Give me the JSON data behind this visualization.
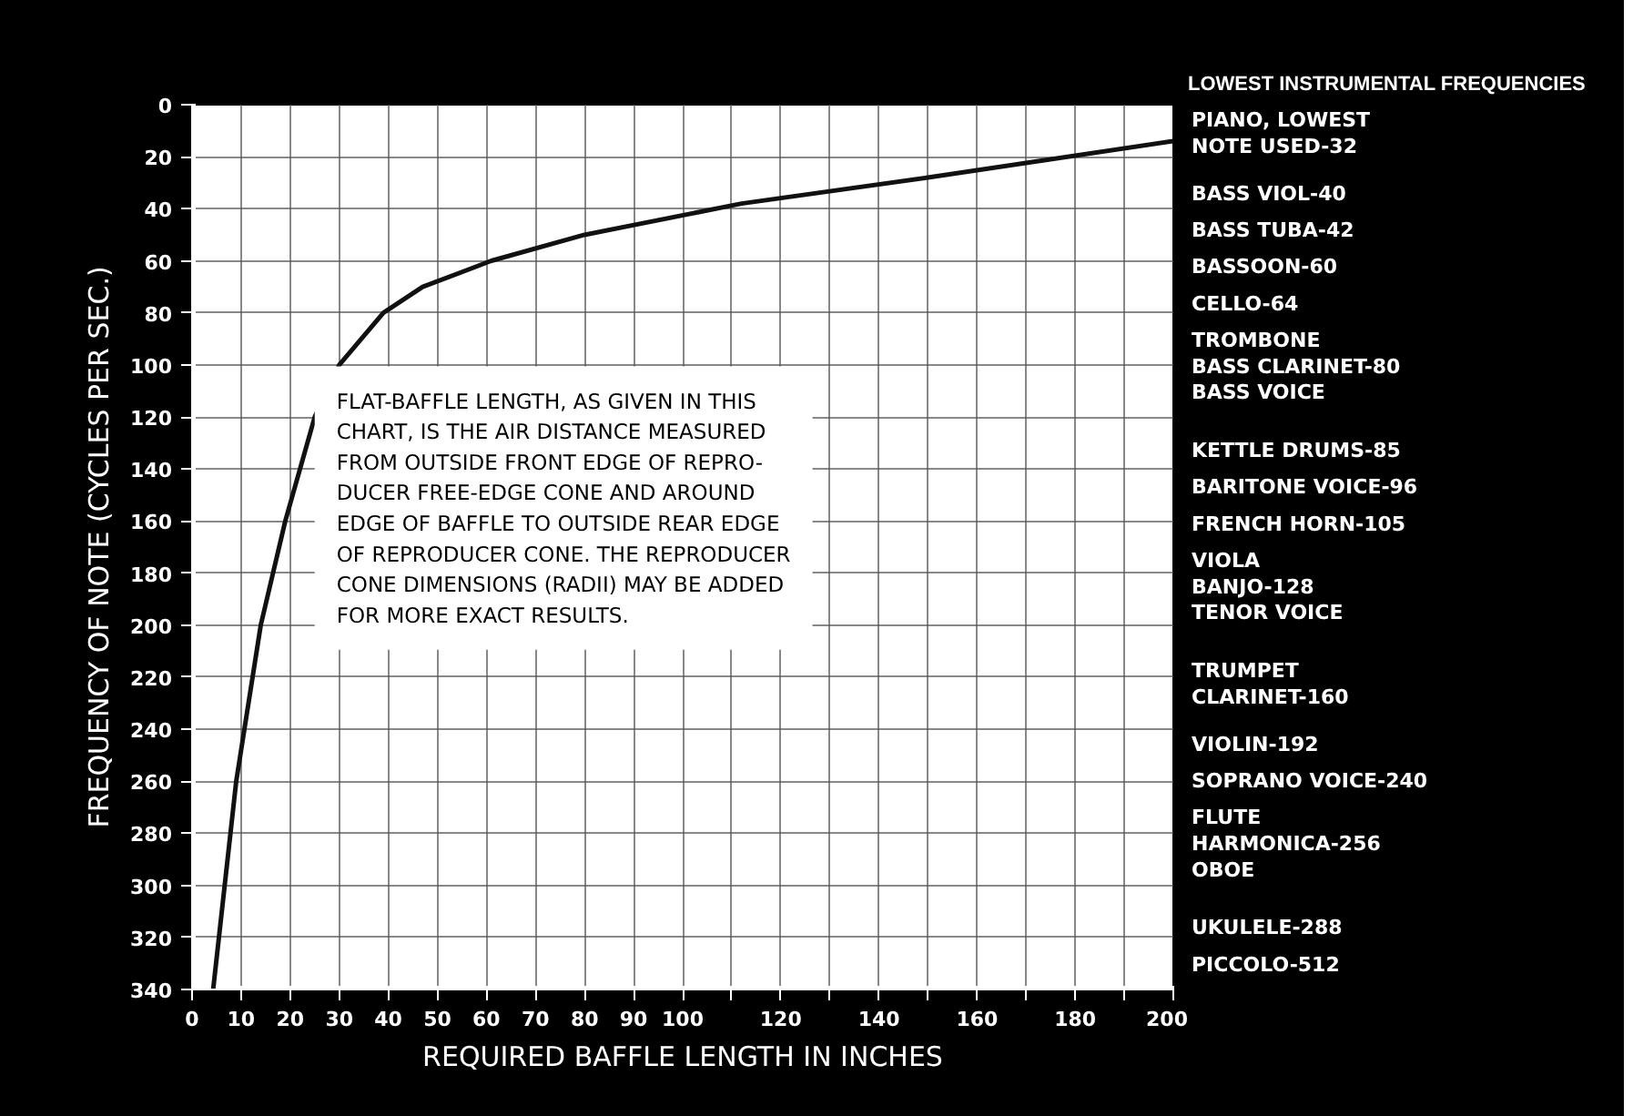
{
  "chart_data": {
    "type": "line",
    "xlabel": "REQUIRED BAFFLE LENGTH IN INCHES",
    "ylabel": "FREQUENCY OF NOTE (CYCLES PER SEC.)",
    "x": [
      4.3,
      9,
      14,
      19,
      25,
      30,
      39,
      47,
      61,
      80,
      112,
      150,
      200
    ],
    "series": [
      {
        "color": "#111111",
        "values": [
          340,
          260,
          200,
          160,
          120,
          100,
          80,
          70,
          60,
          50,
          38,
          28,
          14
        ]
      }
    ],
    "xlim": [
      0,
      200
    ],
    "ylim": [
      340,
      0
    ],
    "xticks": [
      0,
      10,
      20,
      30,
      40,
      50,
      60,
      70,
      80,
      90,
      100,
      {
        "value": 110,
        "label": null
      },
      120,
      {
        "value": 130,
        "label": null
      },
      140,
      {
        "value": 150,
        "label": null
      },
      160,
      {
        "value": 170,
        "label": null
      },
      180,
      {
        "value": 190,
        "label": null
      },
      200
    ],
    "yticks": [
      0,
      20,
      40,
      60,
      80,
      100,
      120,
      140,
      160,
      180,
      200,
      220,
      240,
      260,
      280,
      300,
      320,
      340
    ],
    "grid": true,
    "marker": "none",
    "line_style": "solid",
    "annotations": [
      "LOWEST INSTRUMENTAL FREQUENCIES",
      "PIANO, LOWEST\nNOTE USED-32",
      "BASS VIOL-40",
      "BASS TUBA-42",
      "BASSOON-60",
      "CELLO-64",
      "TROMBONE\nBASS CLARINET-80\nBASS VOICE",
      "KETTLE DRUMS-85",
      "BARITONE VOICE-96",
      "FRENCH HORN-105",
      "VIOLA\nBANJO-128\nTENOR VOICE",
      "TRUMPET\nCLARINET-160",
      "VIOLIN-192",
      "SOPRANO VOICE-240",
      "FLUTE\nHARMONICA-256\nOBOE",
      "UKULELE-288",
      "PICCOLO-512",
      "FLAT-BAFFLE LENGTH, AS GIVEN IN THIS\nCHART, IS THE AIR DISTANCE MEASURED\nFROM OUTSIDE FRONT EDGE OF REPRO-\nDUCER FREE-EDGE CONE AND AROUND\nEDGE OF BAFFLE TO OUTSIDE REAR EDGE\nOF REPRODUCER CONE. THE REPRODUCER\nCONE DIMENSIONS (RADII) MAY BE ADDED\nFOR MORE EXACT RESULTS."
    ]
  }
}
